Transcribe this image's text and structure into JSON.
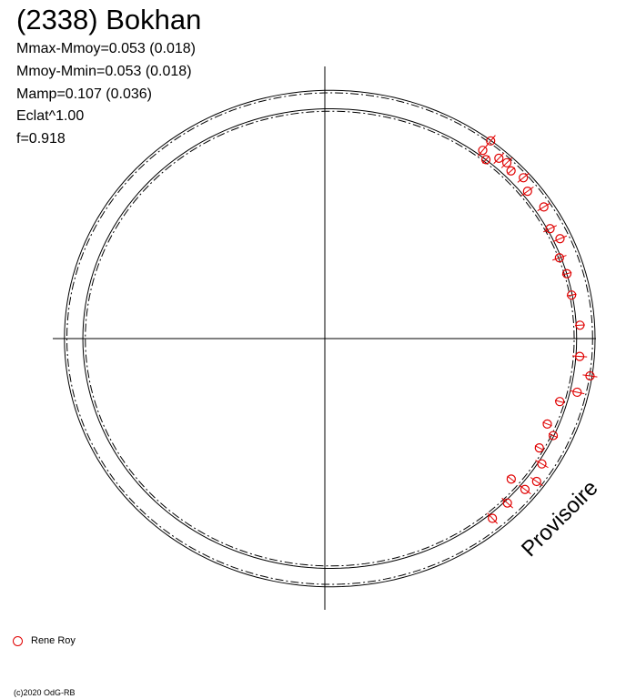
{
  "header": {
    "title": "(2338) Bokhan",
    "stats": [
      "Mmax-Mmoy=0.053 (0.018)",
      "Mmoy-Mmin=0.053 (0.018)",
      "Mamp=0.107 (0.036)",
      "Eclat^1.00",
      "f=0.918"
    ]
  },
  "watermark": "Provisoire",
  "legend": {
    "label": "Rene Roy",
    "color": "#e00000"
  },
  "copyright": "(c)2020 OdG-RB",
  "chart_data": {
    "type": "scatter",
    "coordinate_system": "polar",
    "title": "(2338) Bokhan",
    "xlabel": "",
    "ylabel": "",
    "grid": false,
    "legend_position": "bottom-left",
    "series": [
      {
        "name": "Rene Roy",
        "color": "#e00000",
        "points": [
          {
            "angle_deg": 46,
            "radius": 1.02,
            "err": 0.03
          },
          {
            "angle_deg": 50,
            "radius": 1.0,
            "err": 0.03
          },
          {
            "angle_deg": 50,
            "radius": 1.05,
            "err": 0.03
          },
          {
            "angle_deg": 48,
            "radius": 0.98,
            "err": 0.02
          },
          {
            "angle_deg": 44,
            "radius": 1.03,
            "err": 0.03
          },
          {
            "angle_deg": 42,
            "radius": 1.02,
            "err": 0.02
          },
          {
            "angle_deg": 39,
            "radius": 1.04,
            "err": 0.03
          },
          {
            "angle_deg": 36,
            "radius": 1.02,
            "err": 0.03
          },
          {
            "angle_deg": 31,
            "radius": 1.04,
            "err": 0.03
          },
          {
            "angle_deg": 26,
            "radius": 1.02,
            "err": 0.03
          },
          {
            "angle_deg": 23,
            "radius": 1.04,
            "err": 0.03
          },
          {
            "angle_deg": 19,
            "radius": 1.01,
            "err": 0.03
          },
          {
            "angle_deg": 15,
            "radius": 1.02,
            "err": 0.02
          },
          {
            "angle_deg": 10,
            "radius": 1.02,
            "err": 0.02
          },
          {
            "angle_deg": 3,
            "radius": 1.04,
            "err": 0.02
          },
          {
            "angle_deg": -4,
            "radius": 1.04,
            "err": 0.03
          },
          {
            "angle_deg": -8,
            "radius": 1.09,
            "err": 0.03
          },
          {
            "angle_deg": -12,
            "radius": 1.05,
            "err": 0.03
          },
          {
            "angle_deg": -15,
            "radius": 0.99,
            "err": 0.02
          },
          {
            "angle_deg": -21,
            "radius": 0.97,
            "err": 0.02
          },
          {
            "angle_deg": -23,
            "radius": 1.01,
            "err": 0.02
          },
          {
            "angle_deg": -27,
            "radius": 0.98,
            "err": 0.02
          },
          {
            "angle_deg": -30,
            "radius": 1.02,
            "err": 0.03
          },
          {
            "angle_deg": -34,
            "radius": 1.04,
            "err": 0.03
          },
          {
            "angle_deg": -37,
            "radius": 1.02,
            "err": 0.03
          },
          {
            "angle_deg": -37,
            "radius": 0.95,
            "err": 0.02
          },
          {
            "angle_deg": -42,
            "radius": 1.0,
            "err": 0.03
          },
          {
            "angle_deg": -47,
            "radius": 1.0,
            "err": 0.03
          }
        ]
      }
    ],
    "model_curves": {
      "outer": {
        "style": "solid",
        "a": 0.045
      },
      "outer_dashed": {
        "style": "dashdot",
        "a": 0.035
      },
      "inner": {
        "style": "solid",
        "a": -0.03
      },
      "inner_dashed": {
        "style": "dashdot",
        "a": -0.04
      }
    }
  }
}
